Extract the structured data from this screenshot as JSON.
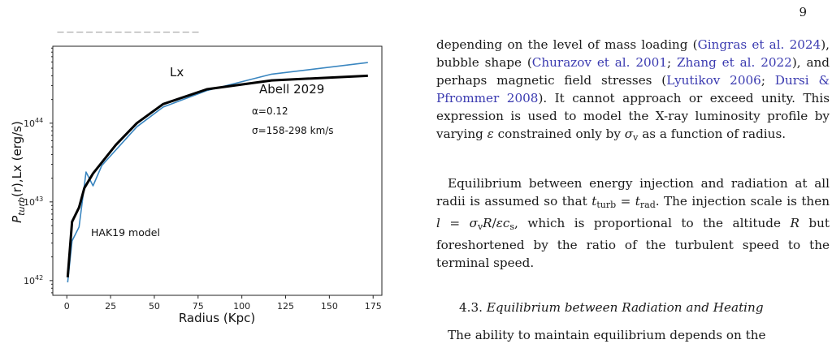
{
  "page_number": "9",
  "figure": {
    "top_cut_text": "— — — — — — — — — — — — — — —",
    "series_label_lx": "Lx",
    "cluster_label": "Abell 2029",
    "alpha_label": "α=0.12",
    "sigma_label": "σ=158-298 km/s",
    "model_label": "HAK19 model",
    "colors": {
      "model_line": "#000000",
      "data_line": "#3a86c0"
    }
  },
  "chart_data": {
    "type": "line",
    "xlabel": "Radius (Kpc)",
    "ylabel_main": "P",
    "ylabel_sub": "turb",
    "ylabel_rest": "(r),Lx (erg/s)",
    "x_ticks": [
      "0",
      "25",
      "50",
      "75",
      "100",
      "125",
      "150",
      "175"
    ],
    "x_tick_values": [
      0,
      25,
      50,
      75,
      100,
      125,
      150,
      175
    ],
    "y_ticks": [
      {
        "base": "10",
        "exp": "42",
        "value": 1e+42
      },
      {
        "base": "10",
        "exp": "43",
        "value": 1e+43
      },
      {
        "base": "10",
        "exp": "44",
        "value": 1e+44
      }
    ],
    "xlim": [
      -8,
      180
    ],
    "ylim": [
      6.5e+41,
      9.5e+44
    ],
    "yscale": "log",
    "series": [
      {
        "name": "HAK19 model",
        "color": "#000000",
        "x": [
          0.5,
          3,
          7,
          10,
          15,
          28,
          40,
          55,
          80,
          117,
          172
        ],
        "y": [
          1.1e+42,
          5.6e+42,
          8.5e+42,
          1.5e+43,
          2.3e+43,
          5.3e+43,
          1e+44,
          1.75e+44,
          2.7e+44,
          3.5e+44,
          4e+44
        ]
      },
      {
        "name": "Lx",
        "color": "#3a86c0",
        "x": [
          0.5,
          3,
          7,
          11,
          15,
          20,
          40,
          55,
          80,
          117,
          172
        ],
        "y": [
          9.5e+41,
          3.2e+42,
          4.8e+42,
          2.4e+43,
          1.6e+43,
          2.9e+43,
          9e+43,
          1.6e+44,
          2.6e+44,
          4.2e+44,
          5.9e+44
        ]
      }
    ]
  },
  "text": {
    "p1": [
      {
        "t": "depending on the level of mass loading ("
      },
      {
        "t": "Gingras et al. 2024",
        "c": 1
      },
      {
        "t": "), bubble shape ("
      },
      {
        "t": "Churazov et al. 2001",
        "c": 1
      },
      {
        "t": "; "
      },
      {
        "t": "Zhang et al. 2022",
        "c": 1
      },
      {
        "t": "), and perhaps magnetic field stresses ("
      },
      {
        "t": "Lyutikov 2006",
        "c": 1
      },
      {
        "t": "; "
      },
      {
        "t": "Dursi & Pfrommer 2008",
        "c": 1
      },
      {
        "t": "). It cannot approach or exceed unity. This expression is used to model the X-ray luminosity profile by varying "
      },
      {
        "t": "ε",
        "m": 1
      },
      {
        "t": " constrained only by "
      },
      {
        "t": "σ",
        "m": 1
      },
      {
        "t": "v",
        "s": 1
      },
      {
        "t": " as a function of radius."
      }
    ],
    "p2": [
      {
        "t": "Equilibrium between energy injection and radiation at all radii is assumed so that "
      },
      {
        "t": "t",
        "m": 1
      },
      {
        "t": "turb",
        "s": 1
      },
      {
        "t": " = "
      },
      {
        "t": "t",
        "m": 1
      },
      {
        "t": "rad",
        "s": 1
      },
      {
        "t": ". The injection scale is then "
      },
      {
        "t": "l",
        "m": 1
      },
      {
        "t": " = "
      },
      {
        "t": "σ",
        "m": 1
      },
      {
        "t": "v",
        "s": 1
      },
      {
        "t": "R",
        "m": 1
      },
      {
        "t": "/"
      },
      {
        "t": "εc",
        "m": 1
      },
      {
        "t": "s",
        "s": 1
      },
      {
        "t": ", which is proportional to the altitude "
      },
      {
        "t": "R",
        "m": 1
      },
      {
        "t": " but foreshortened by the ratio of the turbulent speed to the terminal speed."
      }
    ],
    "section_number": "4.3.",
    "section_title": "Equilibrium between Radiation and Heating",
    "p3_start": "The ability to maintain equilibrium depends on the"
  }
}
